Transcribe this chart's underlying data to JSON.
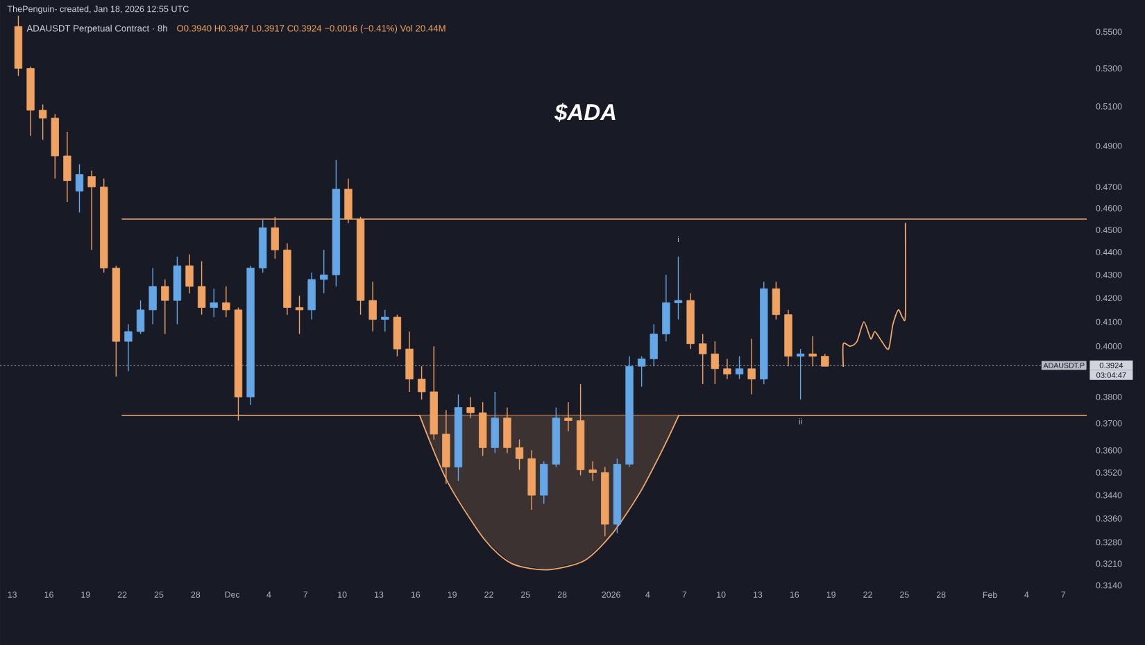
{
  "chart_data": {
    "type": "candlestick",
    "title": "$ADA",
    "annotations": [
      "ThePenguin- created, Jan 18, 2026 12:55 UTC",
      "ADAUSDT Perpetual Contract · 8h",
      "O0.3940 H0.3947 L0.3917 C0.3924 −0.0016 (−0.41%) Vol 20.44M",
      {
        "text": "i",
        "x": "2026-01-06T12:00",
        "y": 0.438
      },
      {
        "text": "ii",
        "x": "2026-01-16T12:00",
        "y": 0.379
      },
      "03:04:47"
    ],
    "x": [
      "2025-11-13T12:00",
      "2025-11-14T12:00",
      "2025-11-15T12:00",
      "2025-11-16T12:00",
      "2025-11-17T12:00",
      "2025-11-18T12:00",
      "2025-11-19T12:00",
      "2025-11-20T12:00",
      "2025-11-21T12:00",
      "2025-11-22T12:00",
      "2025-11-23T12:00",
      "2025-11-24T12:00",
      "2025-11-25T12:00",
      "2025-11-26T12:00",
      "2025-11-27T12:00",
      "2025-11-28T12:00",
      "2025-11-29T12:00",
      "2025-11-30T12:00",
      "2025-12-01T12:00",
      "2025-12-02T12:00",
      "2025-12-03T12:00",
      "2025-12-04T12:00",
      "2025-12-05T12:00",
      "2025-12-06T12:00",
      "2025-12-07T12:00",
      "2025-12-08T12:00",
      "2025-12-09T12:00",
      "2025-12-10T12:00",
      "2025-12-11T12:00",
      "2025-12-12T12:00",
      "2025-12-13T12:00",
      "2025-12-14T12:00",
      "2025-12-15T12:00",
      "2025-12-16T12:00",
      "2025-12-17T12:00",
      "2025-12-18T12:00",
      "2025-12-19T12:00",
      "2025-12-20T12:00",
      "2025-12-21T12:00",
      "2025-12-22T12:00",
      "2025-12-23T12:00",
      "2025-12-24T12:00",
      "2025-12-25T12:00",
      "2025-12-26T12:00",
      "2025-12-27T12:00",
      "2025-12-28T12:00",
      "2025-12-29T12:00",
      "2025-12-30T12:00",
      "2025-12-31T12:00",
      "2026-01-01T12:00",
      "2026-01-02T12:00",
      "2026-01-03T12:00",
      "2026-01-04T12:00",
      "2026-01-05T12:00",
      "2026-01-06T12:00",
      "2026-01-07T12:00",
      "2026-01-08T12:00",
      "2026-01-09T12:00",
      "2026-01-10T12:00",
      "2026-01-11T12:00",
      "2026-01-12T12:00",
      "2026-01-13T12:00",
      "2026-01-14T12:00",
      "2026-01-15T12:00",
      "2026-01-16T12:00",
      "2026-01-17T12:00",
      "2026-01-18T12:00"
    ],
    "ohlc": [
      [
        0.553,
        0.559,
        0.526,
        0.53
      ],
      [
        0.53,
        0.531,
        0.495,
        0.508
      ],
      [
        0.508,
        0.511,
        0.493,
        0.504
      ],
      [
        0.504,
        0.506,
        0.474,
        0.485
      ],
      [
        0.485,
        0.497,
        0.463,
        0.473
      ],
      [
        0.468,
        0.481,
        0.458,
        0.476
      ],
      [
        0.475,
        0.478,
        0.441,
        0.47
      ],
      [
        0.47,
        0.474,
        0.431,
        0.433
      ],
      [
        0.433,
        0.434,
        0.388,
        0.402
      ],
      [
        0.402,
        0.409,
        0.39,
        0.406
      ],
      [
        0.406,
        0.419,
        0.405,
        0.415
      ],
      [
        0.415,
        0.433,
        0.409,
        0.425
      ],
      [
        0.425,
        0.428,
        0.405,
        0.419
      ],
      [
        0.419,
        0.438,
        0.409,
        0.434
      ],
      [
        0.434,
        0.439,
        0.422,
        0.425
      ],
      [
        0.425,
        0.436,
        0.413,
        0.416
      ],
      [
        0.416,
        0.424,
        0.412,
        0.418
      ],
      [
        0.418,
        0.425,
        0.412,
        0.415
      ],
      [
        0.415,
        0.416,
        0.371,
        0.38
      ],
      [
        0.38,
        0.434,
        0.377,
        0.433
      ],
      [
        0.433,
        0.455,
        0.431,
        0.451
      ],
      [
        0.451,
        0.456,
        0.437,
        0.441
      ],
      [
        0.441,
        0.444,
        0.413,
        0.416
      ],
      [
        0.416,
        0.421,
        0.405,
        0.415
      ],
      [
        0.415,
        0.431,
        0.411,
        0.428
      ],
      [
        0.428,
        0.441,
        0.422,
        0.43
      ],
      [
        0.43,
        0.483,
        0.425,
        0.469
      ],
      [
        0.469,
        0.474,
        0.453,
        0.455
      ],
      [
        0.455,
        0.456,
        0.413,
        0.419
      ],
      [
        0.419,
        0.427,
        0.406,
        0.411
      ],
      [
        0.411,
        0.415,
        0.406,
        0.412
      ],
      [
        0.412,
        0.413,
        0.396,
        0.399
      ],
      [
        0.399,
        0.406,
        0.382,
        0.387
      ],
      [
        0.387,
        0.392,
        0.379,
        0.382
      ],
      [
        0.382,
        0.4,
        0.364,
        0.366
      ],
      [
        0.366,
        0.375,
        0.348,
        0.354
      ],
      [
        0.354,
        0.381,
        0.349,
        0.376
      ],
      [
        0.376,
        0.38,
        0.372,
        0.374
      ],
      [
        0.374,
        0.378,
        0.358,
        0.361
      ],
      [
        0.361,
        0.382,
        0.359,
        0.372
      ],
      [
        0.372,
        0.376,
        0.359,
        0.361
      ],
      [
        0.361,
        0.364,
        0.353,
        0.357
      ],
      [
        0.357,
        0.36,
        0.339,
        0.344
      ],
      [
        0.344,
        0.356,
        0.341,
        0.355
      ],
      [
        0.355,
        0.376,
        0.354,
        0.372
      ],
      [
        0.372,
        0.378,
        0.367,
        0.371
      ],
      [
        0.371,
        0.385,
        0.351,
        0.353
      ],
      [
        0.353,
        0.356,
        0.349,
        0.352
      ],
      [
        0.352,
        0.354,
        0.33,
        0.334
      ],
      [
        0.334,
        0.357,
        0.331,
        0.355
      ],
      [
        0.355,
        0.396,
        0.354,
        0.392
      ],
      [
        0.392,
        0.396,
        0.384,
        0.395
      ],
      [
        0.395,
        0.409,
        0.392,
        0.405
      ],
      [
        0.405,
        0.43,
        0.402,
        0.418
      ],
      [
        0.418,
        0.438,
        0.411,
        0.419
      ],
      [
        0.419,
        0.422,
        0.399,
        0.401
      ],
      [
        0.401,
        0.405,
        0.385,
        0.397
      ],
      [
        0.397,
        0.402,
        0.385,
        0.391
      ],
      [
        0.391,
        0.395,
        0.387,
        0.389
      ],
      [
        0.389,
        0.396,
        0.387,
        0.391
      ],
      [
        0.391,
        0.403,
        0.381,
        0.387
      ],
      [
        0.387,
        0.427,
        0.385,
        0.424
      ],
      [
        0.424,
        0.427,
        0.411,
        0.413
      ],
      [
        0.413,
        0.415,
        0.392,
        0.396
      ],
      [
        0.396,
        0.399,
        0.379,
        0.397
      ],
      [
        0.397,
        0.404,
        0.392,
        0.396
      ],
      [
        0.396,
        0.397,
        0.392,
        0.392
      ]
    ],
    "colors": [
      "#f0a263",
      "#f0a263",
      "#f0a263",
      "#f0a263",
      "#f0a263",
      "#64a6e6",
      "#f0a263",
      "#f0a263",
      "#f0a263",
      "#64a6e6",
      "#64a6e6",
      "#64a6e6",
      "#f0a263",
      "#64a6e6",
      "#f0a263",
      "#f0a263",
      "#64a6e6",
      "#f0a263",
      "#f0a263",
      "#64a6e6",
      "#64a6e6",
      "#f0a263",
      "#f0a263",
      "#f0a263",
      "#64a6e6",
      "#64a6e6",
      "#64a6e6",
      "#f0a263",
      "#f0a263",
      "#f0a263",
      "#64a6e6",
      "#f0a263",
      "#f0a263",
      "#f0a263",
      "#f0a263",
      "#f0a263",
      "#64a6e6",
      "#f0a263",
      "#f0a263",
      "#64a6e6",
      "#f0a263",
      "#f0a263",
      "#f0a263",
      "#64a6e6",
      "#64a6e6",
      "#f0a263",
      "#f0a263",
      "#f0a263",
      "#f0a263",
      "#64a6e6",
      "#64a6e6",
      "#64a6e6",
      "#64a6e6",
      "#64a6e6",
      "#64a6e6",
      "#f0a263",
      "#f0a263",
      "#f0a263",
      "#f0a263",
      "#64a6e6",
      "#f0a263",
      "#64a6e6",
      "#f0a263",
      "#f0a263",
      "#64a6e6",
      "#f0a263",
      "#f0a263"
    ],
    "series": [
      {
        "type": "line",
        "color": "#d99a6c",
        "x": [
          "2025-11-22T00:00",
          "2026-02-08T22:00"
        ],
        "values": [
          0.455,
          0.455
        ]
      },
      {
        "type": "line",
        "color": "#d99a6c",
        "x": [
          "2025-11-22T00:00",
          "2026-02-08T22:00"
        ],
        "values": [
          0.373,
          0.373
        ]
      },
      {
        "type": "line",
        "color": "#f0a86e",
        "x": [
          "2025-12-16T08:00",
          "2025-12-18T14:00",
          "2025-12-21T15:00",
          "2025-12-23T21:00",
          "2025-12-26T19:00",
          "2025-12-29T20:00",
          "2026-01-01T03:00",
          "2026-01-03T09:00",
          "2026-01-05T07:00",
          "2026-01-06T13:00"
        ],
        "values": [
          0.373,
          0.349,
          0.329,
          0.321,
          0.319,
          0.322,
          0.331,
          0.345,
          0.361,
          0.373
        ],
        "lower": [
          0.373,
          0.349,
          0.329,
          0.321,
          0.319,
          0.322,
          0.331,
          0.345,
          0.361,
          0.373
        ],
        "upper": [
          0.373,
          0.373,
          0.373,
          0.373,
          0.373,
          0.373,
          0.373,
          0.373,
          0.373,
          0.373
        ]
      },
      {
        "type": "line",
        "color": "#f0a86e",
        "x": [
          "2026-01-20T00:00",
          "2026-01-20T00:00",
          "2026-01-20T13:30",
          "2026-01-21T03:00",
          "2026-01-21T16:30",
          "2026-01-22T06:00",
          "2026-01-22T14:00",
          "2026-01-23T03:30",
          "2026-01-23T17:00",
          "2026-01-24T01:30",
          "2026-01-24T12:00",
          "2026-01-24T20:00",
          "2026-01-25T02:00",
          "2026-01-25T02:00"
        ],
        "values": [
          0.392,
          0.401,
          0.4,
          0.402,
          0.41,
          0.403,
          0.406,
          0.402,
          0.399,
          0.409,
          0.415,
          0.412,
          0.413,
          0.453
        ]
      }
    ],
    "ref_lines": [
      {
        "axis": "y",
        "value": 0.3924,
        "label": "ADAUSDT.P",
        "color": "#8a8e99",
        "line_style": "dotted"
      }
    ],
    "xlim": [
      "2025-11-12T00:00",
      "2026-02-08T22:00"
    ],
    "ylim": [
      0.314,
      0.568
    ],
    "log": true,
    "xticks": [
      {
        "value": "2025-11-13",
        "label": "13"
      },
      {
        "value": "2025-11-16",
        "label": "16"
      },
      {
        "value": "2025-11-19",
        "label": "19"
      },
      {
        "value": "2025-11-22",
        "label": "22"
      },
      {
        "value": "2025-11-25",
        "label": "25"
      },
      {
        "value": "2025-11-28",
        "label": "28"
      },
      {
        "value": "2025-12-01",
        "label": "Dec"
      },
      {
        "value": "2025-12-04",
        "label": "4"
      },
      {
        "value": "2025-12-07",
        "label": "7"
      },
      {
        "value": "2025-12-10",
        "label": "10"
      },
      {
        "value": "2025-12-13",
        "label": "13"
      },
      {
        "value": "2025-12-16",
        "label": "16"
      },
      {
        "value": "2025-12-19",
        "label": "19"
      },
      {
        "value": "2025-12-22",
        "label": "22"
      },
      {
        "value": "2025-12-25",
        "label": "25"
      },
      {
        "value": "2025-12-28",
        "label": "28"
      },
      {
        "value": "2026-01-01",
        "label": "2026"
      },
      {
        "value": "2026-01-04",
        "label": "4"
      },
      {
        "value": "2026-01-07",
        "label": "7"
      },
      {
        "value": "2026-01-10",
        "label": "10"
      },
      {
        "value": "2026-01-13",
        "label": "13"
      },
      {
        "value": "2026-01-16",
        "label": "16"
      },
      {
        "value": "2026-01-19",
        "label": "19"
      },
      {
        "value": "2026-01-22",
        "label": "22"
      },
      {
        "value": "2026-01-25",
        "label": "25"
      },
      {
        "value": "2026-01-28",
        "label": "28"
      },
      {
        "value": "2026-02-01",
        "label": "Feb"
      },
      {
        "value": "2026-02-04",
        "label": "4"
      },
      {
        "value": "2026-02-07",
        "label": "7"
      }
    ],
    "yticks": [
      {
        "value": 0.314,
        "label": "0.3140"
      },
      {
        "value": 0.321,
        "label": "0.3210"
      },
      {
        "value": 0.328,
        "label": "0.3280"
      },
      {
        "value": 0.336,
        "label": "0.3360"
      },
      {
        "value": 0.344,
        "label": "0.3440"
      },
      {
        "value": 0.352,
        "label": "0.3520"
      },
      {
        "value": 0.36,
        "label": "0.3600"
      },
      {
        "value": 0.37,
        "label": "0.3700"
      },
      {
        "value": 0.38,
        "label": "0.3800"
      },
      {
        "value": 0.3924,
        "label": "0.3924"
      },
      {
        "value": 0.4,
        "label": "0.4000"
      },
      {
        "value": 0.41,
        "label": "0.4100"
      },
      {
        "value": 0.42,
        "label": "0.4200"
      },
      {
        "value": 0.43,
        "label": "0.4300"
      },
      {
        "value": 0.44,
        "label": "0.4400"
      },
      {
        "value": 0.45,
        "label": "0.4500"
      },
      {
        "value": 0.46,
        "label": "0.4600"
      },
      {
        "value": 0.47,
        "label": "0.4700"
      },
      {
        "value": 0.49,
        "label": "0.4900"
      },
      {
        "value": 0.51,
        "label": "0.5100"
      },
      {
        "value": 0.53,
        "label": "0.5300"
      },
      {
        "value": 0.55,
        "label": "0.5500"
      }
    ]
  }
}
